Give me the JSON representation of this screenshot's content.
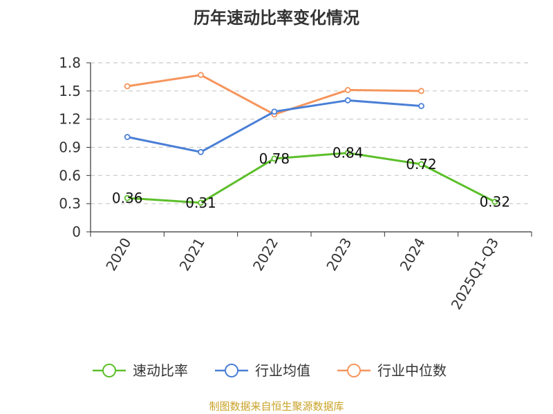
{
  "chart_data": {
    "type": "line",
    "title": "历年速动比率变化情况",
    "categories": [
      "2020",
      "2021",
      "2022",
      "2023",
      "2024",
      "2025Q1-Q3"
    ],
    "y_ticks": [
      "0",
      "0.3",
      "0.6",
      "0.9",
      "1.2",
      "1.5",
      "1.8"
    ],
    "ylim": [
      0,
      1.8
    ],
    "grid": true,
    "legend_position": "bottom",
    "series": [
      {
        "name": "速动比率",
        "color": "#5cbf2a",
        "values": [
          0.36,
          0.31,
          0.78,
          0.84,
          0.72,
          0.32
        ],
        "labels": [
          "0.36",
          "0.31",
          "0.78",
          "0.84",
          "0.72",
          "0.32"
        ]
      },
      {
        "name": "行业均值",
        "color": "#4a7fd6",
        "values": [
          1.01,
          0.85,
          1.28,
          1.4,
          1.34,
          null
        ]
      },
      {
        "name": "行业中位数",
        "color": "#f5955c",
        "values": [
          1.55,
          1.67,
          1.25,
          1.51,
          1.5,
          null
        ]
      }
    ]
  },
  "footer": {
    "source": "制图数据来自恒生聚源数据库",
    "source_color": "#c9a227"
  }
}
